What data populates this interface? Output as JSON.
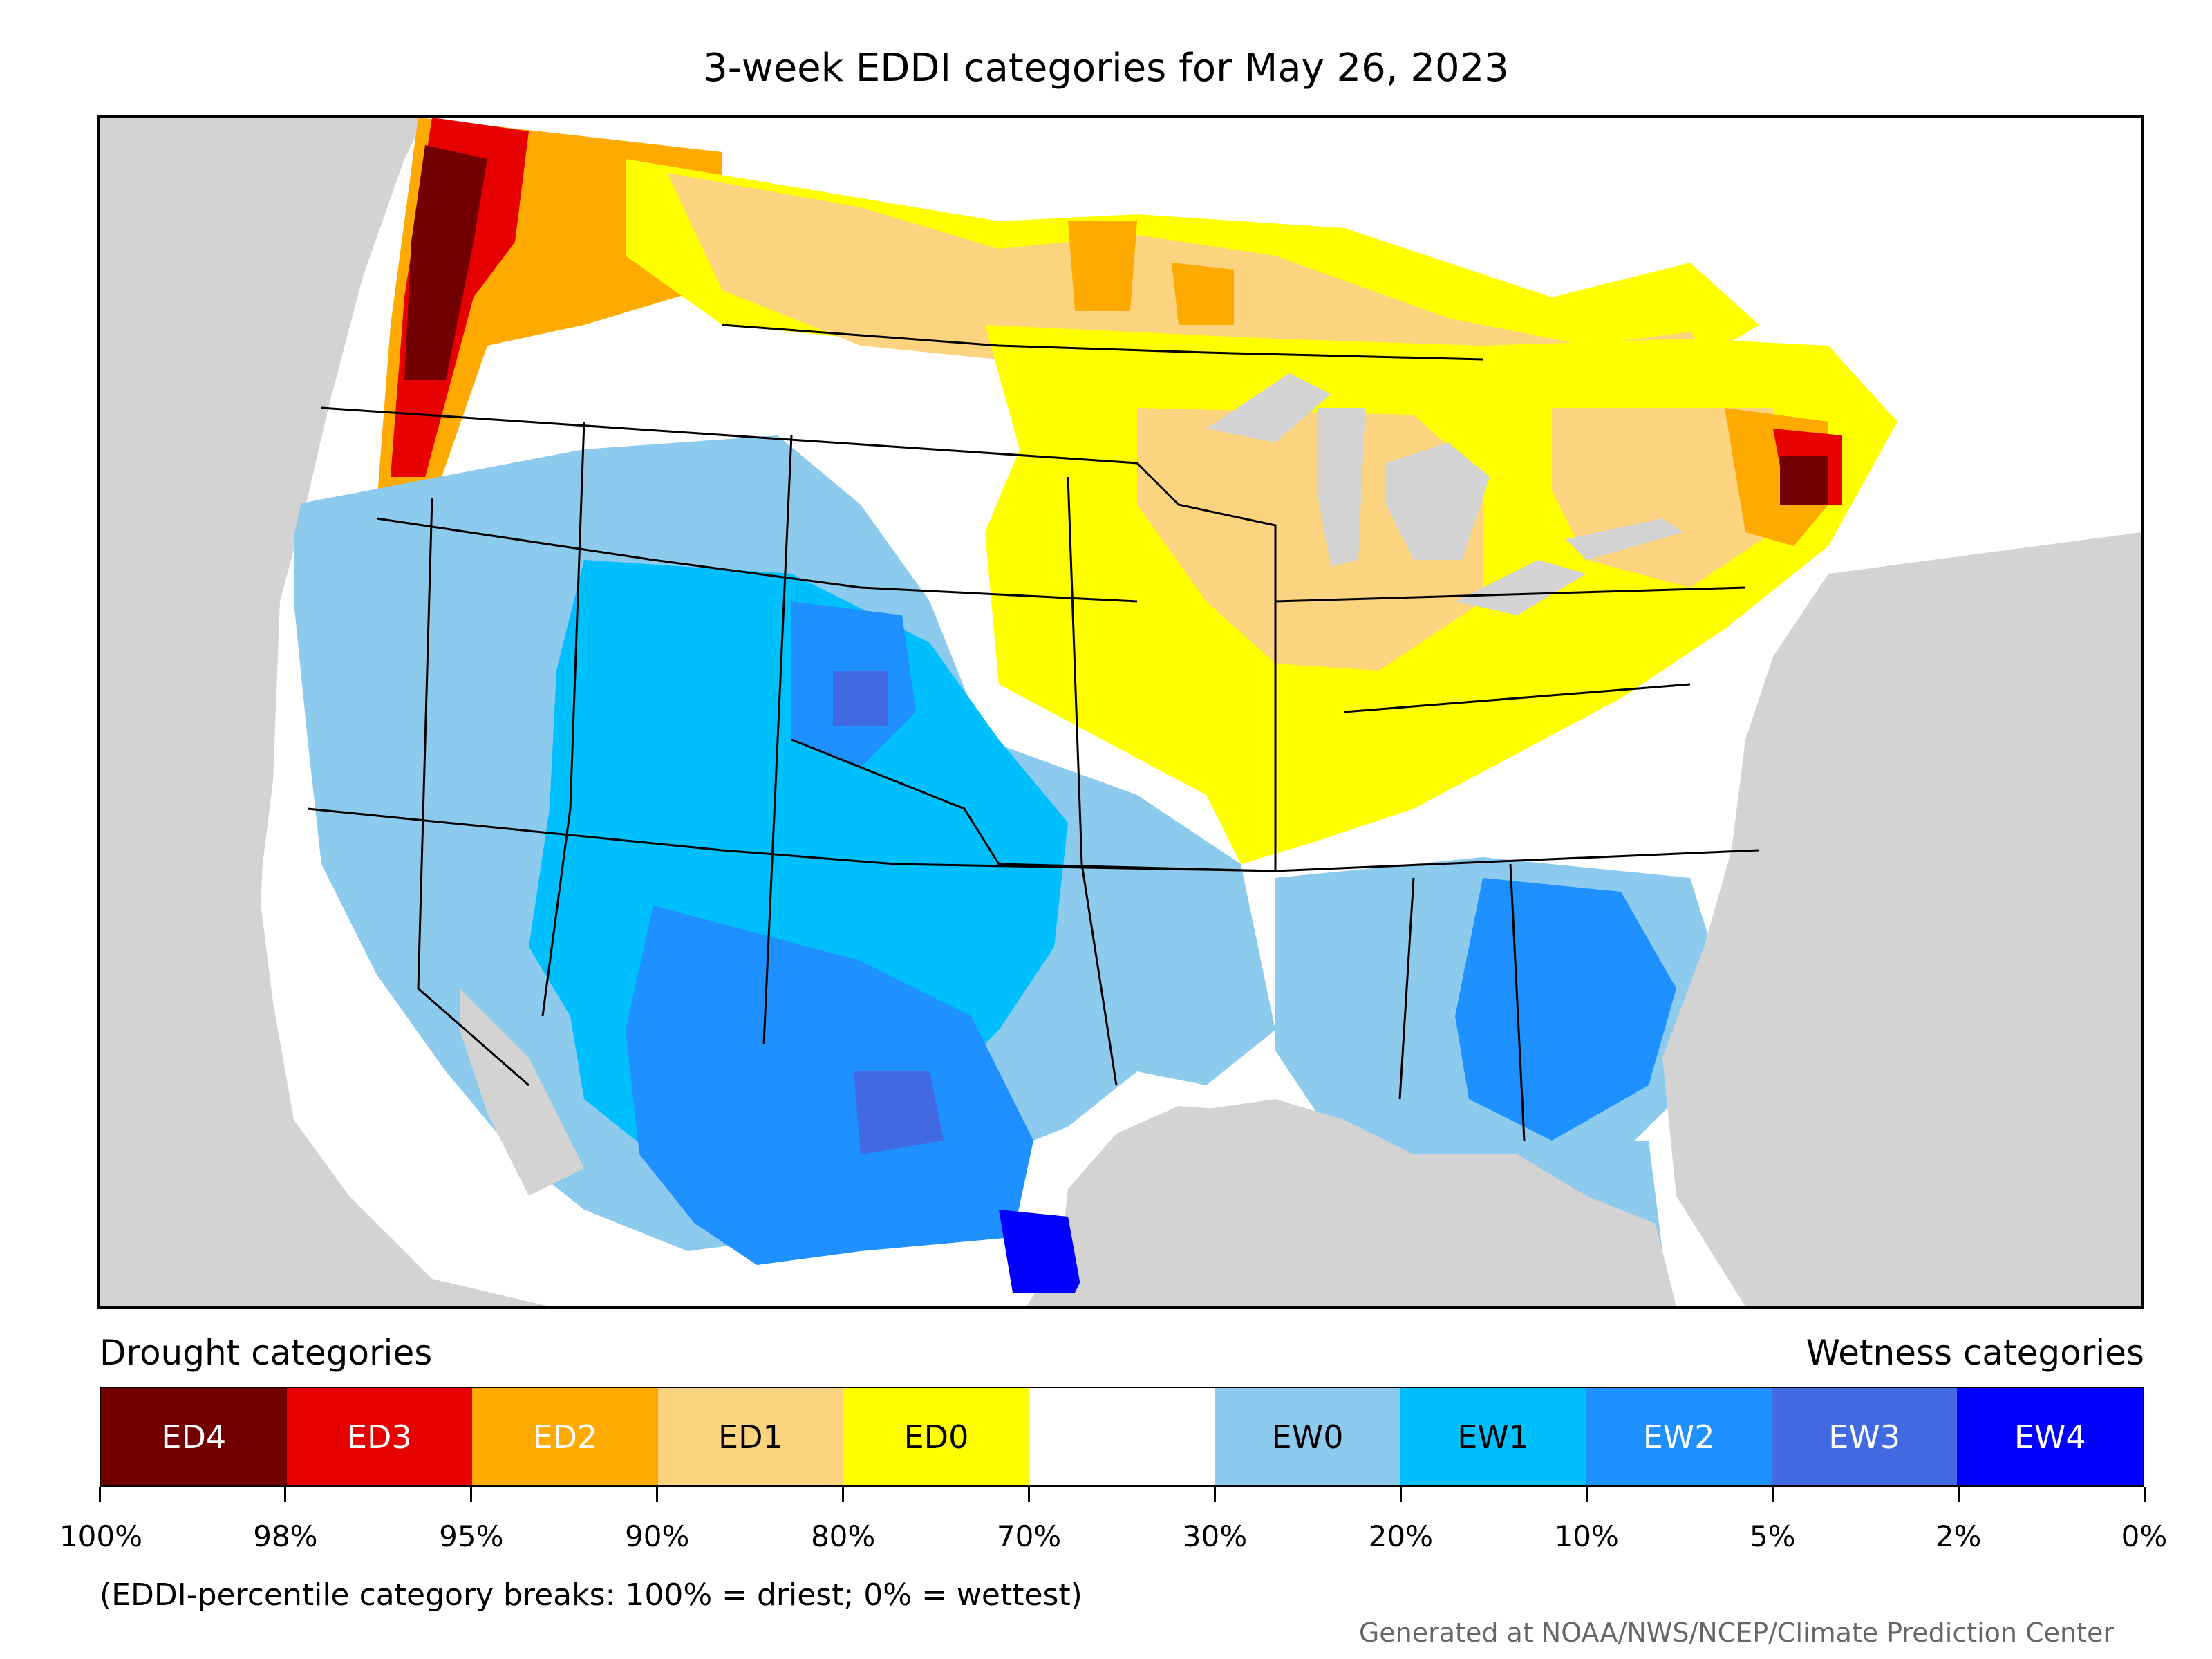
{
  "title": "3-week EDDI categories for May 26, 2023",
  "legend": {
    "drought_label": "Drought categories",
    "wetness_label": "Wetness categories",
    "categories": [
      {
        "code": "ED4",
        "color": "#730000",
        "text_color": "#ffffff"
      },
      {
        "code": "ED3",
        "color": "#e60000",
        "text_color": "#ffffff"
      },
      {
        "code": "ED2",
        "color": "#ffaa00",
        "text_color": "#ffffff"
      },
      {
        "code": "ED1",
        "color": "#fcd37f",
        "text_color": "#000000"
      },
      {
        "code": "ED0",
        "color": "#ffff00",
        "text_color": "#000000"
      },
      {
        "code": "",
        "color": "#ffffff",
        "text_color": "#000000"
      },
      {
        "code": "EW0",
        "color": "#8ccbee",
        "text_color": "#000000"
      },
      {
        "code": "EW1",
        "color": "#00bfff",
        "text_color": "#000000"
      },
      {
        "code": "EW2",
        "color": "#1e90ff",
        "text_color": "#ffffff"
      },
      {
        "code": "EW3",
        "color": "#4169e1",
        "text_color": "#ffffff"
      },
      {
        "code": "EW4",
        "color": "#0000ff",
        "text_color": "#ffffff"
      }
    ],
    "breaks": [
      "100%",
      "98%",
      "95%",
      "90%",
      "80%",
      "70%",
      "30%",
      "20%",
      "10%",
      "5%",
      "2%",
      "0%"
    ]
  },
  "note": "(EDDI-percentile category breaks: 100% = driest; 0% = wettest)",
  "credit": "Generated at NOAA/NWS/NCEP/Climate Prediction Center"
}
